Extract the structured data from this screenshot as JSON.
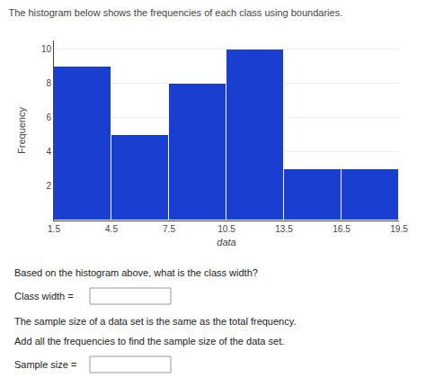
{
  "chart_data": {
    "type": "histogram",
    "title": "The histogram below shows the frequencies of each class using boundaries.",
    "xlabel": "data",
    "ylabel": "Frequency",
    "bins": [
      1.5,
      4.5,
      7.5,
      10.5,
      13.5,
      16.5,
      19.5
    ],
    "values": [
      9,
      5,
      8,
      10,
      3,
      3
    ],
    "color": "#1a3ecf",
    "xlim": [
      1.5,
      19.5
    ],
    "xticks": [
      1.5,
      4.5,
      7.5,
      10.5,
      13.5,
      16.5,
      19.5
    ],
    "ylim": [
      0,
      10.5
    ],
    "yticks": [
      2,
      4,
      6,
      8,
      10
    ],
    "grid": true,
    "subtitle": "Based on the histogram above, what is the class width?",
    "annotations": [
      "Class width =",
      "The sample size of a data set is the same as the total frequency.",
      "Add all the frequencies to find the sample size of the data set.",
      "Sample size ="
    ]
  }
}
